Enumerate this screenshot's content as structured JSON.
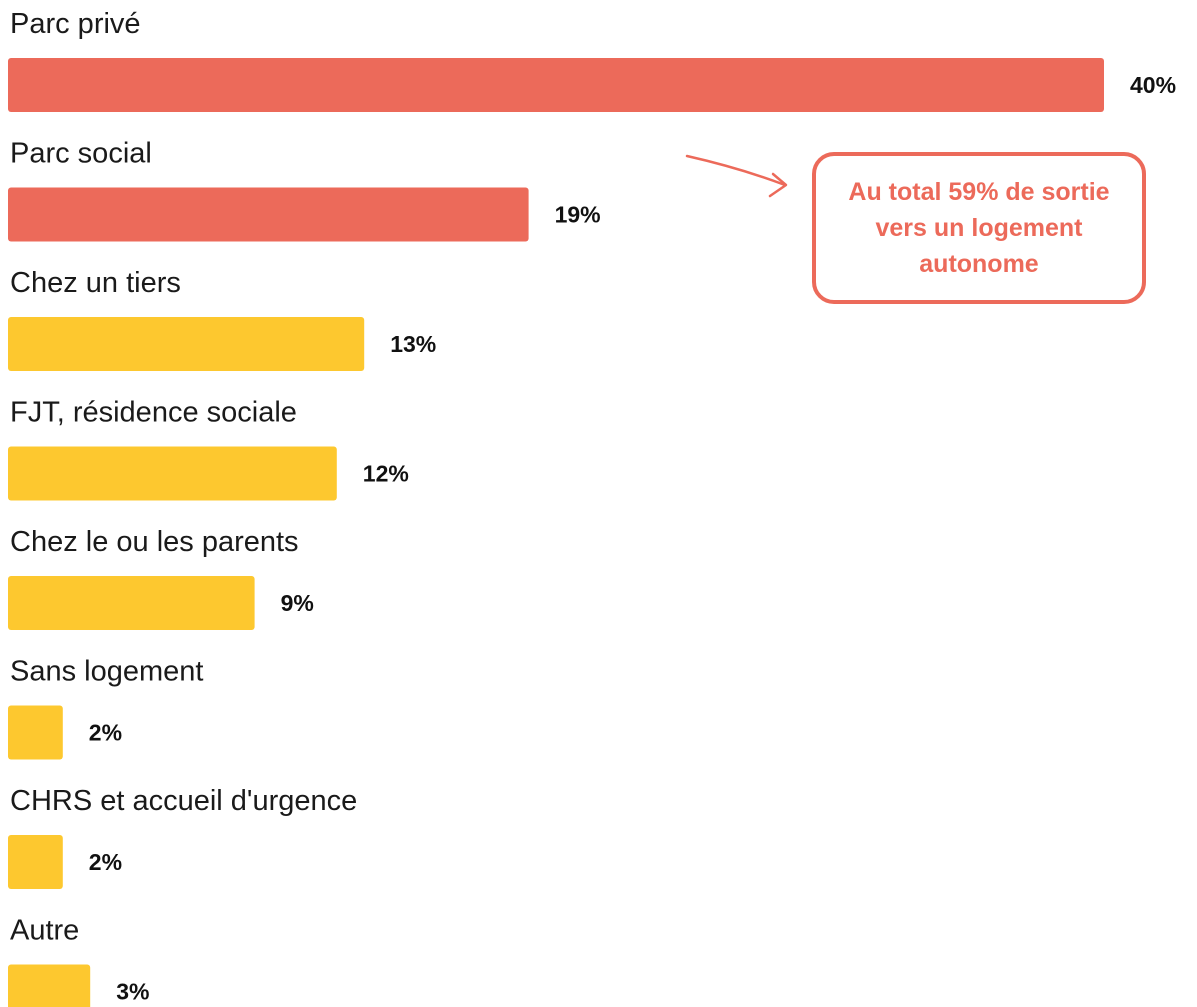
{
  "colors": {
    "highlight": "#ec6a5a",
    "default": "#fdc82f",
    "text": "#1a1a1a",
    "value_text": "#111111"
  },
  "chart_data": {
    "type": "bar",
    "orientation": "horizontal",
    "categories": [
      "Parc privé",
      "Parc social",
      "Chez un tiers",
      "FJT, résidence sociale",
      "Chez le ou les parents",
      "Sans logement",
      "CHRS et accueil d'urgence",
      "Autre"
    ],
    "values": [
      40,
      19,
      13,
      12,
      9,
      2,
      2,
      3
    ],
    "value_labels": [
      "40%",
      "19%",
      "13%",
      "12%",
      "9%",
      "2%",
      "2%",
      "3%"
    ],
    "bar_colors": [
      "highlight",
      "highlight",
      "default",
      "default",
      "default",
      "default",
      "default",
      "default"
    ],
    "xlim": [
      0,
      40
    ],
    "grid": false,
    "legend": false
  },
  "callout": {
    "text": "Au total 59% de sortie vers un logement autonome"
  }
}
